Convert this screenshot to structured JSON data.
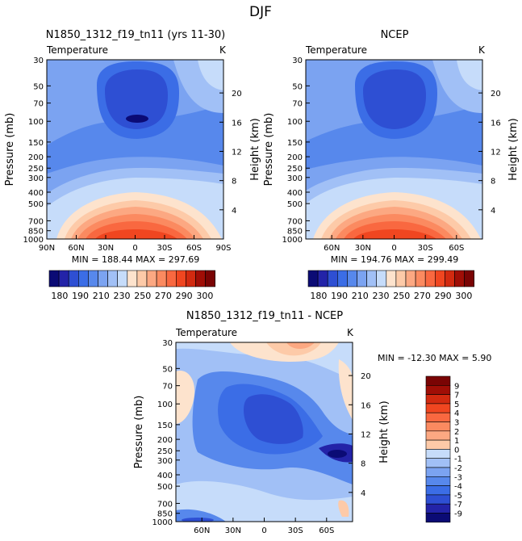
{
  "figure": {
    "title": "DJF"
  },
  "colors": {
    "neg": [
      "#0b0b75",
      "#2323a8",
      "#2e4fd3",
      "#3b6de6",
      "#5788ec",
      "#7ba3f1",
      "#a1c0f6",
      "#c6dcfa"
    ],
    "pos": [
      "#fde3cd",
      "#fdcaa8",
      "#fca882",
      "#fb8a60",
      "#f96840",
      "#f04620",
      "#d22a10",
      "#a00e06",
      "#7a0404"
    ]
  },
  "chart_data": [
    {
      "id": "model",
      "type": "heatmap",
      "title": "N1850_1312_f19_tn11 (yrs 11-30)",
      "field": "Temperature",
      "units": "K",
      "ylabel": "Pressure (mb)",
      "y2label": "Height (km)",
      "xticks": [
        "90N",
        "60N",
        "30N",
        "0",
        "30S",
        "60S",
        "90S"
      ],
      "yticks": [
        "30",
        "50",
        "70",
        "100",
        "150",
        "200",
        "250",
        "300",
        "400",
        "500",
        "700",
        "850",
        "1000"
      ],
      "y2ticks": [
        "20",
        "16",
        "12",
        "8",
        "4"
      ],
      "stats": "MIN = 188.44   MAX = 297.69",
      "min": 188.44,
      "max": 297.69
    },
    {
      "id": "obs",
      "type": "heatmap",
      "title": "NCEP",
      "field": "Temperature",
      "units": "K",
      "ylabel": "Pressure (mb)",
      "y2label": "Height (km)",
      "xticks": [
        "60N",
        "30N",
        "0",
        "30S",
        "60S"
      ],
      "yticks": [
        "30",
        "50",
        "70",
        "100",
        "150",
        "200",
        "250",
        "300",
        "400",
        "500",
        "700",
        "850",
        "1000"
      ],
      "y2ticks": [
        "20",
        "16",
        "12",
        "8",
        "4"
      ],
      "stats": "MIN = 194.76   MAX = 299.49",
      "min": 194.76,
      "max": 299.49
    },
    {
      "id": "diff",
      "type": "heatmap",
      "title": "N1850_1312_f19_tn11 - NCEP",
      "field": "Temperature",
      "units": "K",
      "ylabel": "Pressure (mb)",
      "y2label": "Height (km)",
      "xticks": [
        "60N",
        "30N",
        "0",
        "30S",
        "60S"
      ],
      "yticks": [
        "30",
        "50",
        "70",
        "100",
        "150",
        "200",
        "250",
        "300",
        "400",
        "500",
        "700",
        "850",
        "1000"
      ],
      "y2ticks": [
        "20",
        "16",
        "12",
        "8",
        "4"
      ],
      "stats": "MIN = -12.30   MAX =   5.90",
      "min": -12.3,
      "max": 5.9
    }
  ],
  "colorbar_abs": {
    "labels": [
      "180",
      "190",
      "210",
      "230",
      "250",
      "270",
      "290",
      "300"
    ]
  },
  "colorbar_diff": {
    "labels": [
      "9",
      "7",
      "5",
      "4",
      "3",
      "2",
      "1",
      "0",
      "-1",
      "-2",
      "-3",
      "-4",
      "-5",
      "-7",
      "-9"
    ]
  }
}
